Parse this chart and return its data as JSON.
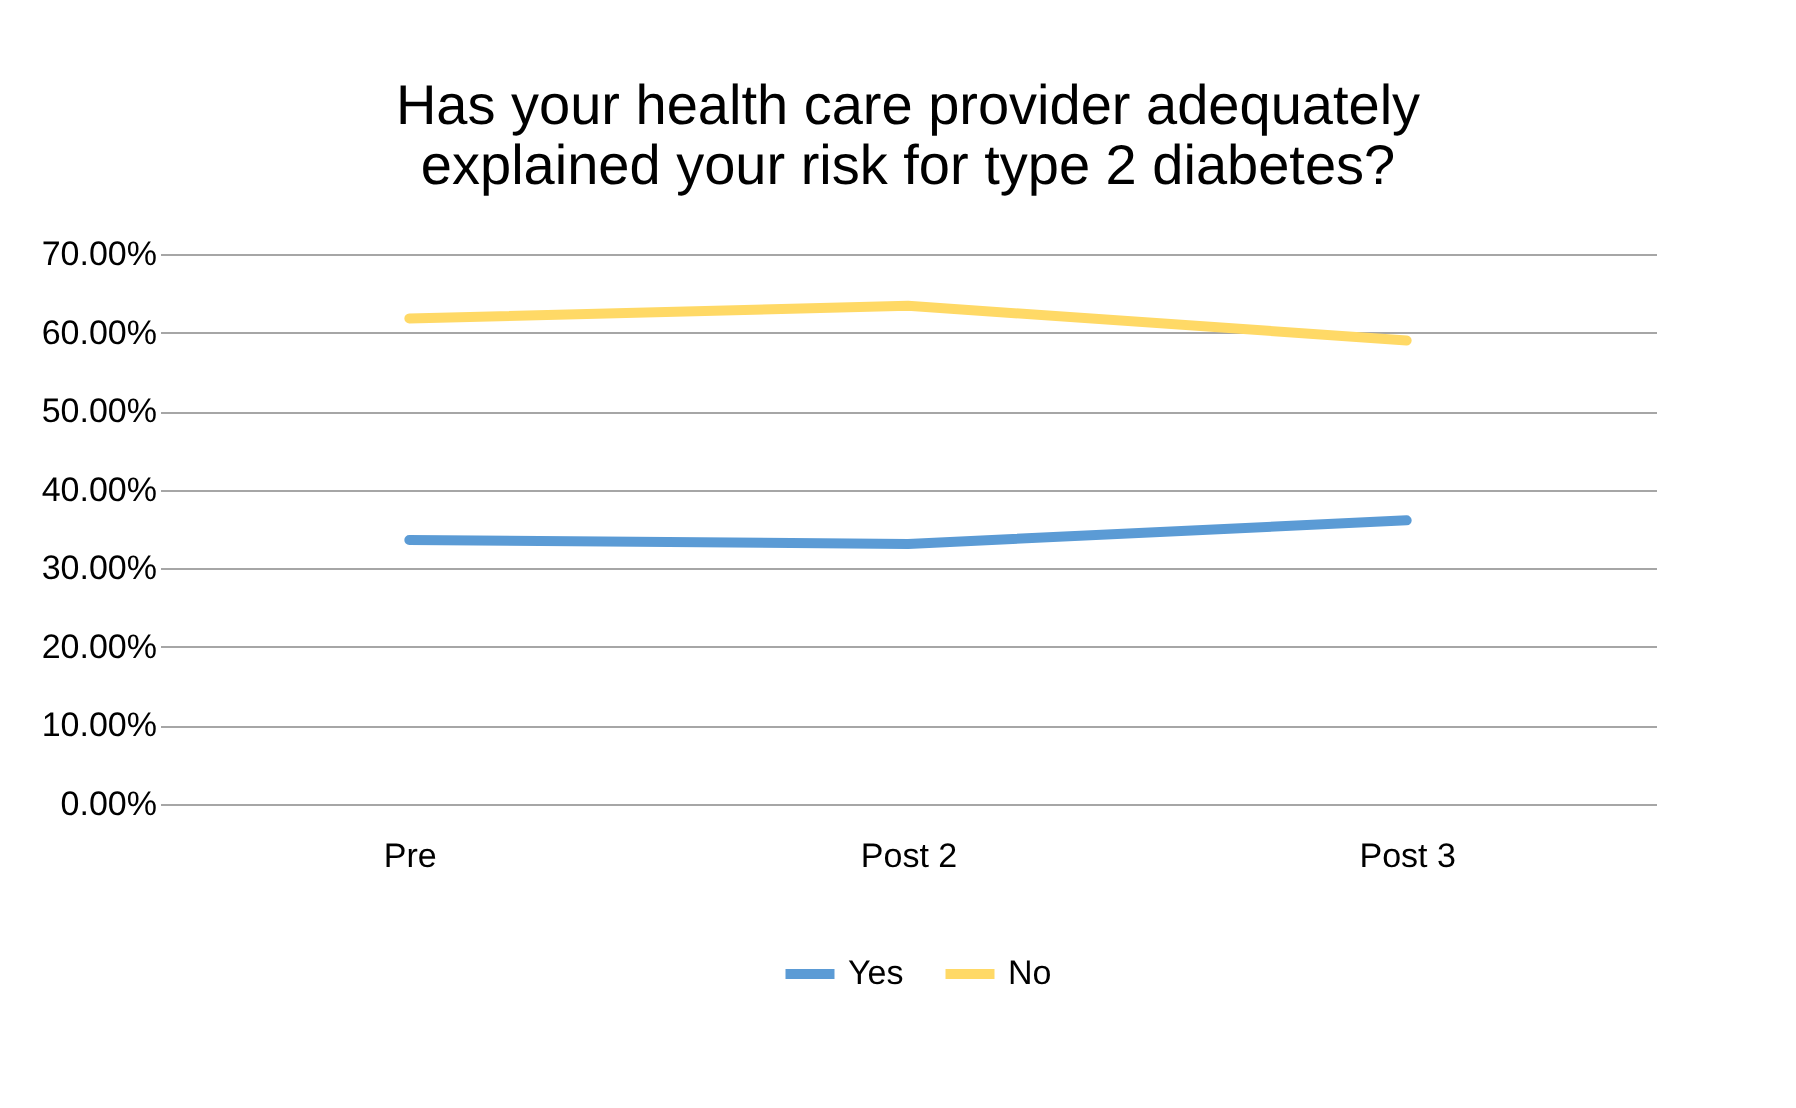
{
  "chart_data": {
    "type": "line",
    "title": [
      "Has your health care provider adequately",
      "explained your risk for type 2 diabetes?"
    ],
    "categories": [
      "Pre",
      "Post 2",
      "Post 3"
    ],
    "series": [
      {
        "name": "Yes",
        "color": "#5b9bd5",
        "values": [
          33.6,
          33.1,
          36.1
        ]
      },
      {
        "name": "No",
        "color": "#ffd966",
        "values": [
          61.8,
          63.4,
          59.0
        ]
      }
    ],
    "ylim": [
      0,
      70
    ],
    "yticks": [
      {
        "value": 0,
        "label": "0.00%"
      },
      {
        "value": 10,
        "label": "10.00%"
      },
      {
        "value": 20,
        "label": "20.00%"
      },
      {
        "value": 30,
        "label": "30.00%"
      },
      {
        "value": 40,
        "label": "40.00%"
      },
      {
        "value": 50,
        "label": "50.00%"
      },
      {
        "value": 60,
        "label": "60.00%"
      },
      {
        "value": 70,
        "label": "70.00%"
      }
    ],
    "grid": "y",
    "legend": "bottom",
    "marker": "none",
    "line_style": "solid"
  }
}
